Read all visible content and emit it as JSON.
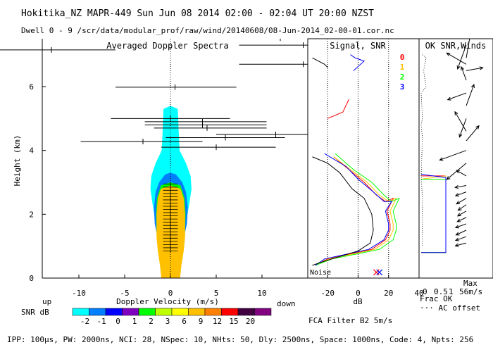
{
  "header": {
    "line1": "Hokitika_NZ  MAPR-449  Sun Jun 08 2014 02:00 - 02:04 UT 20:00 NZST",
    "line2": "Dwell  0 - 9   /scr/data/modular_prof/raw/wind/20140608/08-Jun-2014_02-00-01.cor.nc"
  },
  "footer": "IPP: 100µs, PW: 2000ns, NCI: 28, NSpec: 10, NHts: 50, Dly: 2500ns, Space: 1000ns, Code: 4, Npts: 256",
  "colors": {
    "snr": [
      "#00ffff",
      "#0080ff",
      "#0000ff",
      "#8000c0",
      "#00ff00",
      "#c0ff00",
      "#ffff00",
      "#ffc000",
      "#ff8000",
      "#ff0000",
      "#400040",
      "#800080"
    ],
    "channels": [
      "#ff0000",
      "#ffc000",
      "#00ff00",
      "#0000ff"
    ]
  },
  "legend": {
    "up": "up",
    "down": "down",
    "snr_label": "SNR dB",
    "values": [
      "-2",
      "-1",
      "0",
      "1",
      "2",
      "3",
      "6",
      "9",
      "12",
      "15",
      "20"
    ]
  },
  "chart_data": [
    {
      "type": "heatmap",
      "title": "Averaged Doppler Spectra",
      "xlabel": "Doppler Velocity (m/s)",
      "ylabel": "Height (km)",
      "xlim": [
        -14,
        15
      ],
      "ylim": [
        0,
        7.5
      ],
      "xticks": [
        -10,
        -5,
        0,
        5,
        10
      ],
      "yticks": [
        0,
        2,
        4,
        6
      ],
      "contour_levels": [
        {
          "level": 0,
          "half_widths": [
            [
              0.85,
              0
            ],
            [
              1.1,
              1.4
            ],
            [
              1.8,
              1.9
            ],
            [
              2.1,
              2.4
            ],
            [
              2.3,
              2.8
            ],
            [
              2.2,
              3.2
            ],
            [
              1.7,
              3.6
            ],
            [
              1.0,
              4.0
            ],
            [
              0.9,
              4.6
            ],
            [
              0.8,
              5.3
            ],
            [
              0,
              5.4
            ]
          ]
        },
        {
          "level": 1,
          "half_widths": [
            [
              0.95,
              0
            ],
            [
              1.2,
              1.0
            ],
            [
              1.5,
              1.3
            ],
            [
              1.8,
              1.7
            ],
            [
              1.9,
              2.2
            ],
            [
              1.7,
              2.7
            ],
            [
              1.3,
              3.0
            ],
            [
              0.6,
              3.25
            ],
            [
              0,
              3.3
            ]
          ]
        },
        {
          "level": 4,
          "half_widths": [
            [
              1.0,
              0
            ],
            [
              1.2,
              0.6
            ],
            [
              1.45,
              1.0
            ],
            [
              1.6,
              1.5
            ],
            [
              1.65,
              2.0
            ],
            [
              1.55,
              2.5
            ],
            [
              1.1,
              2.9
            ],
            [
              0,
              3.0
            ]
          ]
        },
        {
          "level": 7,
          "half_widths": [
            [
              1.05,
              0
            ],
            [
              1.2,
              0.4
            ],
            [
              1.45,
              0.85
            ],
            [
              1.6,
              1.3
            ],
            [
              1.6,
              2.0
            ],
            [
              1.45,
              2.5
            ],
            [
              1.1,
              2.8
            ],
            [
              0,
              2.9
            ]
          ]
        }
      ],
      "wind_bars": [
        {
          "h": 7.15,
          "c": -13,
          "lo": -20,
          "hi": -6
        },
        {
          "h": 7.52,
          "c": 12,
          "lo": 5.5,
          "hi": 16
        },
        {
          "h": 7.3,
          "c": 14.5,
          "lo": 7.5,
          "hi": 20
        },
        {
          "h": 6.7,
          "c": 14.5,
          "lo": 7.5,
          "hi": 20
        },
        {
          "h": 5.98,
          "c": 0.5,
          "lo": -6,
          "hi": 7.2
        },
        {
          "h": 5.0,
          "c": 0,
          "lo": -6.5,
          "hi": 6.5
        },
        {
          "h": 4.9,
          "c": 3.5,
          "lo": -2.8,
          "hi": 10.5
        },
        {
          "h": 4.8,
          "c": 3.5,
          "lo": -2.8,
          "hi": 10.5
        },
        {
          "h": 4.7,
          "c": 4,
          "lo": -1.8,
          "hi": 10.5
        },
        {
          "h": 4.5,
          "c": 11.5,
          "lo": 5,
          "hi": 18
        },
        {
          "h": 4.4,
          "c": 6,
          "lo": -0.5,
          "hi": 12.5
        },
        {
          "h": 4.28,
          "c": -3,
          "lo": -9.8,
          "hi": 3.5
        },
        {
          "h": 4.1,
          "c": 5,
          "lo": -1,
          "hi": 11.5
        }
      ]
    },
    {
      "type": "line",
      "title": "Signal, SNR",
      "xlabel": "dB",
      "xlim": [
        -33,
        40
      ],
      "ylim": [
        0,
        7.5
      ],
      "xticks": [
        -20,
        0,
        20,
        40
      ],
      "noise_label": "Noise",
      "series": [
        {
          "name": "0",
          "points": [
            [
              -16,
              3.8
            ],
            [
              -6,
              3.4
            ],
            [
              4,
              3.0
            ],
            [
              12,
              2.6
            ],
            [
              18,
              2.4
            ],
            [
              23,
              2.5
            ],
            [
              19,
              2.1
            ],
            [
              20,
              1.9
            ],
            [
              21,
              1.7
            ],
            [
              21,
              1.5
            ],
            [
              18,
              1.2
            ],
            [
              9,
              0.9
            ],
            [
              -20,
              0.6
            ],
            [
              -28,
              0.4
            ]
          ]
        },
        {
          "name": "1",
          "points": [
            [
              -16,
              3.8
            ],
            [
              -5,
              3.4
            ],
            [
              6,
              3.0
            ],
            [
              14,
              2.6
            ],
            [
              20,
              2.4
            ],
            [
              25,
              2.5
            ],
            [
              21,
              2.1
            ],
            [
              22,
              1.9
            ],
            [
              23,
              1.7
            ],
            [
              23,
              1.5
            ],
            [
              20,
              1.2
            ],
            [
              11,
              0.9
            ],
            [
              -19,
              0.6
            ],
            [
              -28,
              0.4
            ]
          ]
        },
        {
          "name": "2",
          "points": [
            [
              -15,
              3.9
            ],
            [
              -3,
              3.4
            ],
            [
              9,
              3.0
            ],
            [
              17,
              2.6
            ],
            [
              22,
              2.4
            ],
            [
              27,
              2.5
            ],
            [
              23,
              2.1
            ],
            [
              24,
              1.9
            ],
            [
              25,
              1.7
            ],
            [
              25,
              1.5
            ],
            [
              23,
              1.2
            ],
            [
              14,
              0.9
            ],
            [
              -17,
              0.6
            ],
            [
              -28,
              0.4
            ]
          ]
        },
        {
          "name": "3",
          "points": [
            [
              -22,
              3.9
            ],
            [
              -8,
              3.5
            ],
            [
              0,
              3.1
            ],
            [
              10,
              2.7
            ],
            [
              17,
              2.4
            ],
            [
              22,
              2.4
            ],
            [
              18,
              2.1
            ],
            [
              19,
              1.9
            ],
            [
              20,
              1.7
            ],
            [
              20,
              1.5
            ],
            [
              17,
              1.2
            ],
            [
              7,
              0.9
            ],
            [
              -22,
              0.6
            ],
            [
              -28,
              0.4
            ]
          ]
        },
        {
          "name": "noise",
          "points": [
            [
              -30,
              3.8
            ],
            [
              -20,
              3.6
            ],
            [
              -12,
              3.3
            ],
            [
              -4,
              2.8
            ],
            [
              4,
              2.5
            ],
            [
              9,
              2.0
            ],
            [
              10,
              1.5
            ],
            [
              8,
              1.1
            ],
            [
              0,
              0.85
            ],
            [
              -24,
              0.5
            ],
            [
              -30,
              0.4
            ]
          ]
        }
      ],
      "upper_segments": [
        {
          "series": "3",
          "points": [
            [
              -5,
              7.0
            ],
            [
              -2,
              6.9
            ],
            [
              4,
              6.8
            ],
            [
              -3,
              6.5
            ]
          ]
        },
        {
          "series": "0",
          "points": [
            [
              -20,
              5.0
            ],
            [
              -10,
              5.2
            ],
            [
              -6,
              5.6
            ]
          ]
        },
        {
          "series": "noise",
          "points": [
            [
              -30,
              6.9
            ],
            [
              -22,
              6.7
            ],
            [
              -20,
              6.6
            ]
          ]
        }
      ],
      "markers": [
        {
          "x": 12,
          "y": 0.18,
          "series": "0"
        },
        {
          "x": 14,
          "y": 0.18,
          "series": "3"
        }
      ]
    },
    {
      "type": "line",
      "title": "OK SNR,Winds",
      "xlabel": "Frac OK",
      "x_note": "AC offset",
      "max_label": "Max",
      "max_value": "56m/s",
      "xticks": [
        "0.5",
        "1"
      ],
      "series_labels": [
        "0",
        "1",
        "2",
        "3"
      ],
      "filter_label": "FCA Filter B2  5m/s",
      "frac_ok": [
        {
          "series": "0",
          "points": [
            [
              0,
              3.2
            ],
            [
              1,
              3.2
            ],
            [
              1,
              0.8
            ],
            [
              0,
              0.8
            ]
          ]
        },
        {
          "series": "1",
          "points": [
            [
              0,
              3.1
            ],
            [
              1,
              3.2
            ],
            [
              1,
              0.8
            ],
            [
              0,
              0.8
            ]
          ]
        },
        {
          "series": "2",
          "points": [
            [
              0,
              3.1
            ],
            [
              1,
              3.1
            ],
            [
              1,
              0.8
            ],
            [
              0,
              0.8
            ]
          ]
        },
        {
          "series": "3",
          "points": [
            [
              0,
              3.25
            ],
            [
              1,
              3.15
            ],
            [
              1,
              0.8
            ],
            [
              0,
              0.8
            ]
          ]
        }
      ],
      "ac_offset": [
        [
          0.05,
          7.0
        ],
        [
          0.2,
          6.9
        ],
        [
          0.1,
          6.5
        ],
        [
          0.2,
          6.0
        ],
        [
          0.0,
          5.8
        ],
        [
          0.05,
          5.0
        ],
        [
          0.0,
          4.8
        ],
        [
          0.05,
          4.4
        ],
        [
          0.0,
          3.2
        ],
        [
          0.05,
          2.5
        ],
        [
          0.05,
          1.0
        ]
      ],
      "winds": [
        {
          "h": 7.3,
          "ang": 200,
          "len": 0.9
        },
        {
          "h": 6.9,
          "ang": 10,
          "len": 1.0
        },
        {
          "h": 6.7,
          "ang": 300,
          "len": 0.8
        },
        {
          "h": 6.5,
          "ang": 80,
          "len": 0.6
        },
        {
          "h": 6.2,
          "ang": 340,
          "len": 0.5
        },
        {
          "h": 5.8,
          "ang": 250,
          "len": 0.7
        },
        {
          "h": 5.4,
          "ang": 20,
          "len": 0.8
        },
        {
          "h": 5.0,
          "ang": 200,
          "len": 0.7
        },
        {
          "h": 4.6,
          "ang": 330,
          "len": 0.8
        },
        {
          "h": 4.3,
          "ang": 40,
          "len": 0.7
        },
        {
          "h": 4.0,
          "ang": 250,
          "len": 1.0
        },
        {
          "h": 3.6,
          "ang": 230,
          "len": 0.9
        },
        {
          "h": 3.2,
          "ang": 300,
          "len": 0.4
        },
        {
          "h": 2.9,
          "ang": 260,
          "len": 0.4
        },
        {
          "h": 2.7,
          "ang": 250,
          "len": 0.4
        },
        {
          "h": 2.5,
          "ang": 240,
          "len": 0.4
        },
        {
          "h": 2.3,
          "ang": 235,
          "len": 0.35
        },
        {
          "h": 2.1,
          "ang": 240,
          "len": 0.35
        },
        {
          "h": 1.9,
          "ang": 245,
          "len": 0.35
        },
        {
          "h": 1.7,
          "ang": 250,
          "len": 0.4
        },
        {
          "h": 1.5,
          "ang": 245,
          "len": 0.4
        },
        {
          "h": 1.3,
          "ang": 250,
          "len": 0.4
        },
        {
          "h": 1.1,
          "ang": 255,
          "len": 0.4
        }
      ]
    }
  ]
}
